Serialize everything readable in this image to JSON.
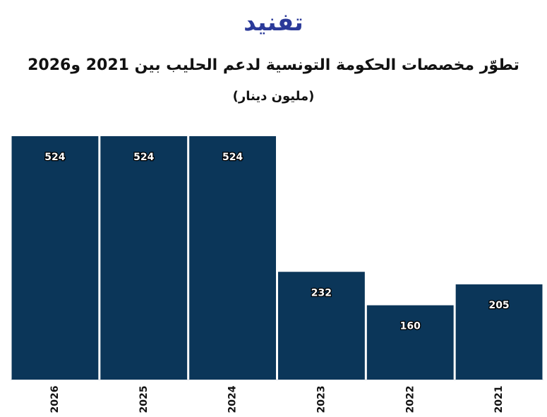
{
  "header": {
    "logo_text": "تفنيد",
    "title": "تطوّر مخصصات الحكومة التونسية لدعم الحليب بين 2021 و2026",
    "subtitle": "(مليون دينار)"
  },
  "colors": {
    "bar": "#0b3659",
    "logo_primary": "#2b3a99",
    "logo_accent": "#30c6b5"
  },
  "chart_data": {
    "type": "bar",
    "title": "تطوّر مخصصات الحكومة التونسية لدعم الحليب بين 2021 و2026",
    "subtitle": "(مليون دينار)",
    "categories": [
      "2026",
      "2025",
      "2024",
      "2023",
      "2022",
      "2021"
    ],
    "values": [
      524,
      524,
      524,
      232,
      160,
      205
    ],
    "ylim": [
      0,
      524
    ],
    "grid": false,
    "legend": "none",
    "data_labels": true,
    "x_tick_rotation": "vertical"
  }
}
